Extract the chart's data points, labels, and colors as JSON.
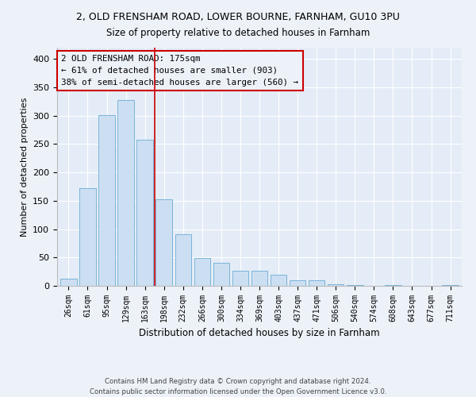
{
  "title_line1": "2, OLD FRENSHAM ROAD, LOWER BOURNE, FARNHAM, GU10 3PU",
  "title_line2": "Size of property relative to detached houses in Farnham",
  "xlabel": "Distribution of detached houses by size in Farnham",
  "ylabel": "Number of detached properties",
  "categories": [
    "26sqm",
    "61sqm",
    "95sqm",
    "129sqm",
    "163sqm",
    "198sqm",
    "232sqm",
    "266sqm",
    "300sqm",
    "334sqm",
    "369sqm",
    "403sqm",
    "437sqm",
    "471sqm",
    "506sqm",
    "540sqm",
    "574sqm",
    "608sqm",
    "643sqm",
    "677sqm",
    "711sqm"
  ],
  "values": [
    12,
    172,
    301,
    328,
    258,
    152,
    91,
    49,
    41,
    26,
    27,
    20,
    10,
    10,
    3,
    1,
    0,
    1,
    0,
    0,
    1
  ],
  "bar_color": "#ccdff2",
  "bar_edge_color": "#7ab4d8",
  "reference_line_color": "#cc0000",
  "annotation_text": "2 OLD FRENSHAM ROAD: 175sqm\n← 61% of detached houses are smaller (903)\n38% of semi-detached houses are larger (560) →",
  "annotation_box_color": "#cc0000",
  "ylim": [
    0,
    420
  ],
  "yticks": [
    0,
    50,
    100,
    150,
    200,
    250,
    300,
    350,
    400
  ],
  "footer_text": "Contains HM Land Registry data © Crown copyright and database right 2024.\nContains public sector information licensed under the Open Government Licence v3.0.",
  "bg_color": "#edf2f9",
  "plot_bg_color": "#e4ecf7"
}
